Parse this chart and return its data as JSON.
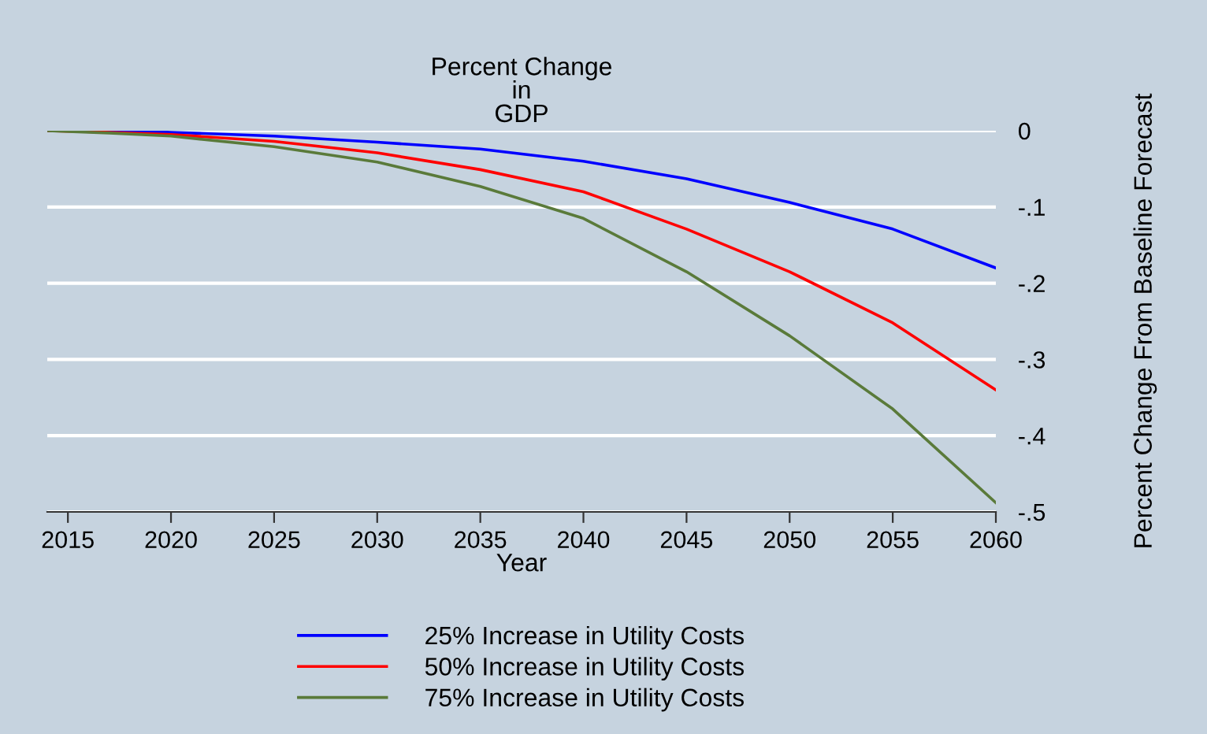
{
  "chart_data": {
    "type": "line",
    "title": "Percent Change\nin\nGDP",
    "xlabel": "Year",
    "ylabel": "Percent Change From Baseline Forecast",
    "x": [
      2014,
      2017,
      2020,
      2025,
      2030,
      2035,
      2040,
      2045,
      2050,
      2055,
      2060
    ],
    "series": [
      {
        "name": "25% Increase in Utility Costs",
        "color": "#0000ff",
        "values": [
          0,
          0,
          -0.002,
          -0.007,
          -0.015,
          -0.024,
          -0.04,
          -0.063,
          -0.094,
          -0.129,
          -0.18
        ]
      },
      {
        "name": "50% Increase in Utility Costs",
        "color": "#ff0000",
        "values": [
          0,
          -0.002,
          -0.005,
          -0.014,
          -0.029,
          -0.051,
          -0.08,
          -0.129,
          -0.185,
          -0.252,
          -0.34
        ]
      },
      {
        "name": "75% Increase in Utility Costs",
        "color": "#5a7a3a",
        "values": [
          0,
          -0.003,
          -0.007,
          -0.021,
          -0.041,
          -0.073,
          -0.115,
          -0.185,
          -0.269,
          -0.365,
          -0.488
        ]
      }
    ],
    "xlim": [
      2014,
      2060
    ],
    "xticks": [
      2015,
      2020,
      2025,
      2030,
      2035,
      2040,
      2045,
      2050,
      2055,
      2060
    ],
    "ylim": [
      -0.5,
      0
    ],
    "yticks": [
      {
        "value": 0,
        "label": "0"
      },
      {
        "value": -0.1,
        "label": "-.1"
      },
      {
        "value": -0.2,
        "label": "-.2"
      },
      {
        "value": -0.3,
        "label": "-.3"
      },
      {
        "value": -0.4,
        "label": "-.4"
      },
      {
        "value": -0.5,
        "label": "-.5"
      }
    ],
    "grid": "y",
    "legend": "bottom",
    "marker": "none",
    "line_style": "solid"
  }
}
